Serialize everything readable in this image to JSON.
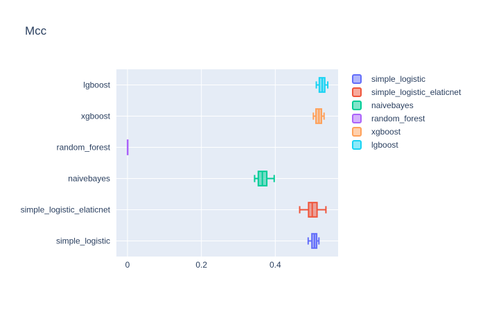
{
  "chart_data": {
    "type": "box",
    "orientation": "horizontal",
    "title": "Mcc",
    "xlabel": "",
    "ylabel": "",
    "xlim": [
      -0.03,
      0.57
    ],
    "xticks": [
      0,
      0.2,
      0.4
    ],
    "xtick_labels": [
      "0",
      "0.2",
      "0.4"
    ],
    "grid": true,
    "legend_position": "right",
    "categories": [
      "simple_logistic",
      "simple_logistic_elaticnet",
      "naivebayes",
      "random_forest",
      "xgboost",
      "lgboost"
    ],
    "series": [
      {
        "name": "simple_logistic",
        "color": "#636efa",
        "min": 0.489,
        "q1": 0.499,
        "median": 0.506,
        "q3": 0.512,
        "max": 0.518
      },
      {
        "name": "simple_logistic_elaticnet",
        "color": "#ef553b",
        "min": 0.466,
        "q1": 0.49,
        "median": 0.5,
        "q3": 0.513,
        "max": 0.537
      },
      {
        "name": "naivebayes",
        "color": "#00cc96",
        "min": 0.344,
        "q1": 0.354,
        "median": 0.365,
        "q3": 0.377,
        "max": 0.397
      },
      {
        "name": "random_forest",
        "color": "#ab63fa",
        "min": 0.0,
        "q1": 0.0,
        "median": 0.0,
        "q3": 0.0,
        "max": 0.0
      },
      {
        "name": "xgboost",
        "color": "#ffa15a",
        "min": 0.503,
        "q1": 0.51,
        "median": 0.518,
        "q3": 0.525,
        "max": 0.532
      },
      {
        "name": "lgboost",
        "color": "#19d3f3",
        "min": 0.511,
        "q1": 0.519,
        "median": 0.527,
        "q3": 0.534,
        "max": 0.542
      }
    ]
  }
}
